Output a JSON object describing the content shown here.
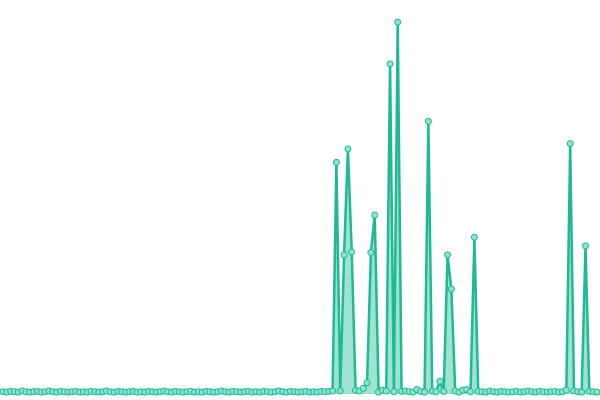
{
  "chart_data": {
    "type": "area",
    "title": "",
    "xlabel": "",
    "ylabel": "",
    "xlim": [
      0,
      150
    ],
    "ylim": [
      0,
      100
    ],
    "grid": false,
    "legend": "none",
    "colors": {
      "line": "#20b995",
      "fill": "#7dd9c0",
      "marker_fill": "#8fe3cc",
      "marker_stroke": "#20b995"
    },
    "series": [
      {
        "values": [
          0.6,
          0.5,
          0.7,
          0.6,
          0.5,
          0.8,
          0.6,
          0.5,
          0.6,
          0.7,
          0.5,
          0.6,
          0.8,
          0.6,
          0.5,
          0.7,
          0.6,
          0.5,
          0.6,
          0.7,
          0.5,
          0.6,
          0.5,
          0.7,
          0.6,
          0.5,
          0.6,
          0.8,
          0.6,
          0.5,
          0.7,
          0.6,
          0.5,
          0.6,
          0.7,
          0.5,
          0.6,
          0.5,
          0.7,
          0.6,
          0.5,
          0.6,
          0.8,
          0.6,
          0.5,
          0.7,
          0.6,
          0.5,
          0.6,
          0.7,
          0.5,
          0.6,
          0.5,
          0.7,
          0.6,
          0.5,
          0.6,
          0.8,
          0.6,
          0.5,
          0.7,
          0.6,
          0.5,
          0.6,
          0.7,
          0.5,
          0.6,
          0.5,
          0.7,
          0.6,
          0.5,
          0.6,
          0.8,
          0.6,
          0.5,
          0.7,
          0.6,
          0.5,
          0.6,
          0.7,
          0.5,
          0.6,
          0.5,
          0.7,
          0.6,
          0.7,
          0.8,
          61.6,
          0.8,
          37.0,
          65.2,
          37.8,
          1.0,
          0.8,
          1.5,
          3.0,
          37.6,
          47.6,
          0.5,
          1.0,
          0.8,
          87.8,
          0.6,
          98.9,
          0.7,
          0.8,
          0.6,
          0.5,
          1.2,
          0.7,
          0.5,
          72.5,
          0.8,
          0.6,
          3.4,
          0.7,
          37.0,
          27.9,
          0.8,
          0.5,
          1.0,
          1.2,
          0.6,
          41.7,
          0.7,
          0.6,
          0.5,
          0.8,
          0.6,
          0.5,
          0.7,
          0.6,
          0.5,
          0.6,
          0.7,
          0.5,
          0.6,
          0.8,
          0.6,
          0.5,
          0.7,
          0.6,
          0.5,
          0.6,
          0.7,
          0.5,
          0.6,
          1.0,
          66.6,
          0.8,
          0.6,
          0.5,
          39.4,
          0.7,
          0.6,
          0.5
        ]
      }
    ]
  }
}
